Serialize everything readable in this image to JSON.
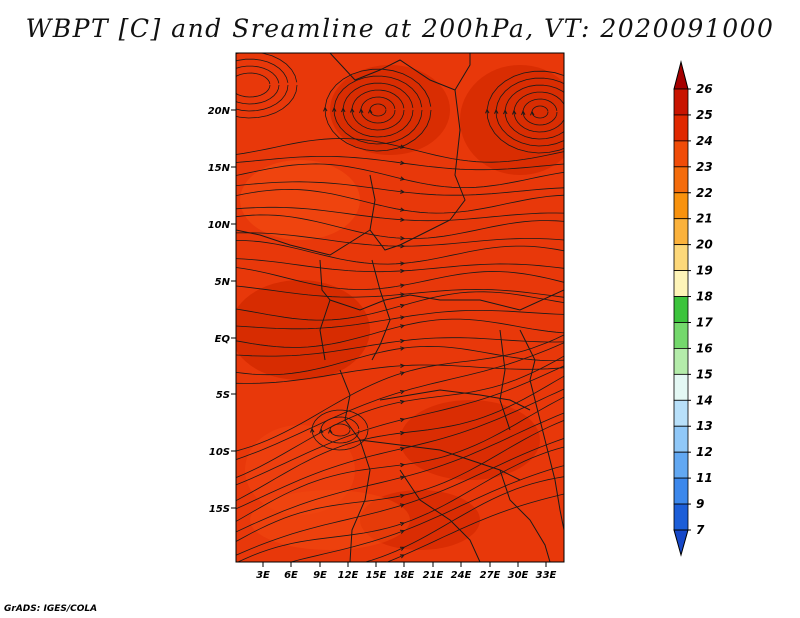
{
  "title": "WBPT [C] and Sreamline at 200hPa, VT: 2020091000",
  "credit": "GrADS: IGES/COLA",
  "map": {
    "lat_labels": [
      "20N",
      "15N",
      "10N",
      "5N",
      "EQ",
      "5S",
      "10S",
      "15S"
    ],
    "lon_labels": [
      "3E",
      "6E",
      "9E",
      "12E",
      "15E",
      "18E",
      "21E",
      "24E",
      "27E",
      "30E",
      "33E"
    ],
    "shaded_field": "Wet bulb potential temperature",
    "overlay": "Streamlines",
    "dominant_colors": [
      "#e8380a",
      "#d42a00",
      "#f24a10"
    ]
  },
  "colorbar": {
    "levels": [
      "26",
      "25",
      "24",
      "23",
      "22",
      "21",
      "20",
      "19",
      "18",
      "17",
      "16",
      "15",
      "14",
      "13",
      "12",
      "11",
      "9",
      "7"
    ],
    "colors": [
      "#a50000",
      "#c81400",
      "#e02800",
      "#f04c08",
      "#f46c0c",
      "#f8920e",
      "#fbb23c",
      "#fdd87a",
      "#fef4b8",
      "#3cc43c",
      "#74d86c",
      "#b4ecaa",
      "#e4f8f4",
      "#b8e0fa",
      "#90c8f8",
      "#62a8f2",
      "#3c88ec",
      "#1c5ed8",
      "#1648c8"
    ]
  }
}
